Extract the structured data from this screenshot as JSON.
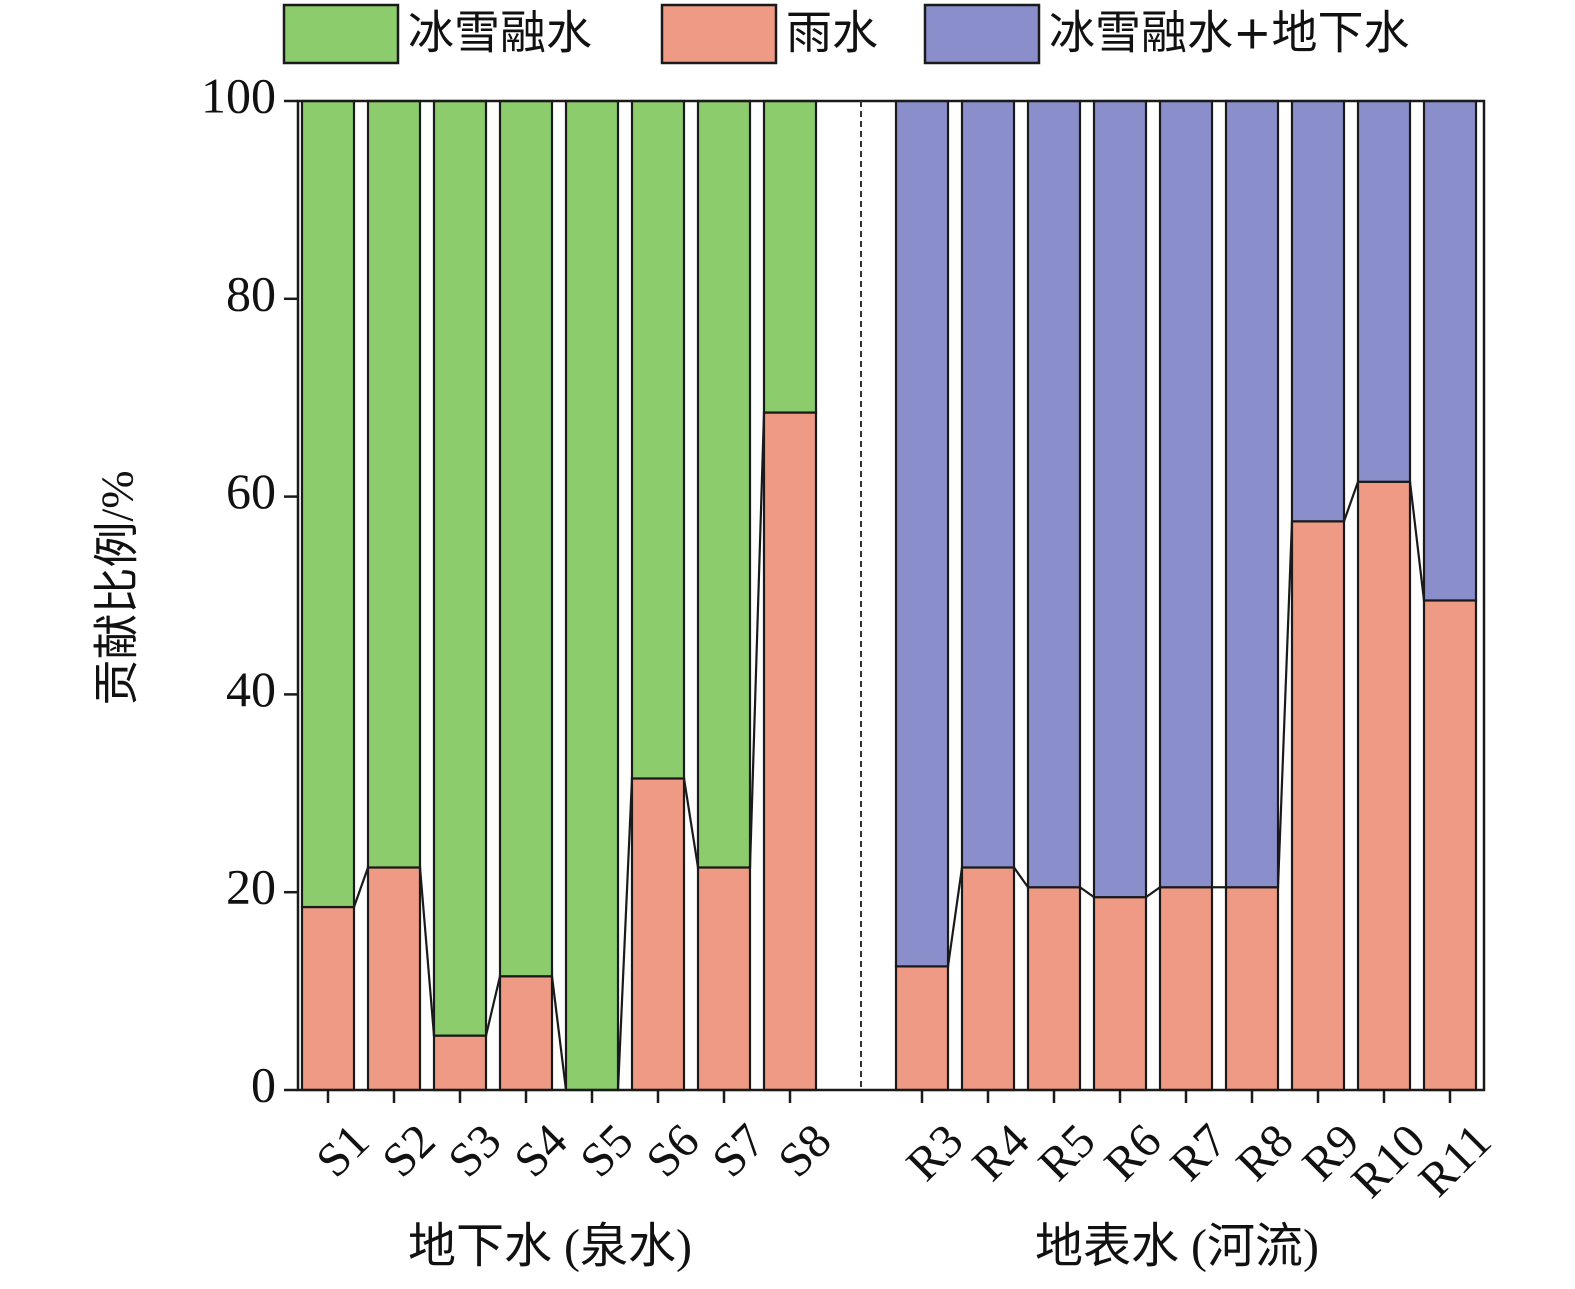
{
  "chart_data": {
    "type": "bar",
    "stacked": true,
    "ylabel": "贡献比例/%",
    "ylim": [
      0,
      100
    ],
    "yticks": [
      0,
      20,
      40,
      60,
      80,
      100
    ],
    "grid": false,
    "legend": {
      "position": "top",
      "entries": [
        {
          "label": "冰雪融水",
          "color": "#8ccc6c"
        },
        {
          "label": "雨水",
          "color": "#ee9a85"
        },
        {
          "label": "冰雪融水+地下水",
          "color": "#8a8fcc"
        }
      ]
    },
    "groups": [
      {
        "label": "地下水 (泉水)",
        "categories": [
          "S1",
          "S2",
          "S3",
          "S4",
          "S5",
          "S6",
          "S7",
          "S8"
        ],
        "series": [
          {
            "name": "雨水",
            "color": "#ee9a85",
            "values": [
              18.5,
              22.5,
              5.5,
              11.5,
              0,
              31.5,
              22.5,
              68.5
            ]
          },
          {
            "name": "冰雪融水",
            "color": "#8ccc6c",
            "values": [
              81.5,
              77.5,
              94.5,
              88.5,
              100,
              68.5,
              77.5,
              31.5
            ]
          }
        ]
      },
      {
        "label": "地表水 (河流)",
        "categories": [
          "R3",
          "R4",
          "R5",
          "R6",
          "R7",
          "R8",
          "R9",
          "R10",
          "R11"
        ],
        "series": [
          {
            "name": "雨水",
            "color": "#ee9a85",
            "values": [
              12.5,
              22.5,
              20.5,
              19.5,
              20.5,
              20.5,
              57.5,
              61.5,
              49.5
            ]
          },
          {
            "name": "冰雪融水+地下水",
            "color": "#8a8fcc",
            "values": [
              87.5,
              77.5,
              79.5,
              80.5,
              79.5,
              79.5,
              42.5,
              38.5,
              50.5
            ]
          }
        ]
      }
    ]
  }
}
